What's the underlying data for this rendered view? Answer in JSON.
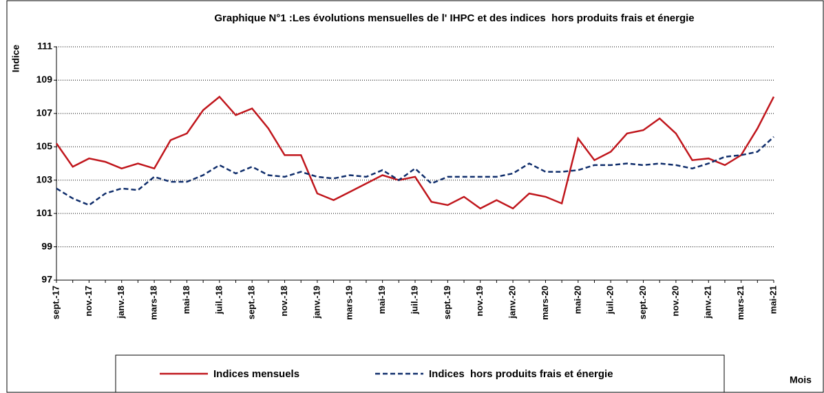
{
  "chart_data": {
    "type": "line",
    "title": "Graphique N°1 :Les évolutions mensuelles de l' IHPC et des indices  hors produits frais et énergie",
    "y_label": "Indice",
    "x_label": "Mois",
    "categories": [
      "sept.-17",
      null,
      "nov.-17",
      null,
      "janv.-18",
      null,
      "mars-18",
      null,
      "mai-18",
      null,
      "juil.-18",
      null,
      "sept.-18",
      null,
      "nov.-18",
      null,
      "janv.-19",
      null,
      "mars-19",
      null,
      "mai-19",
      null,
      "juil.-19",
      null,
      "sept.-19",
      null,
      "nov.-19",
      null,
      "janv.-20",
      null,
      "mars-20",
      null,
      "mai-20",
      null,
      "juil.-20",
      null,
      "sept.-20",
      null,
      "nov.-20",
      null,
      "janv.-21",
      null,
      "mars-21",
      null,
      "mai-21"
    ],
    "series": [
      {
        "name": "Indices mensuels",
        "color": "#c0161c",
        "dash": false,
        "values": [
          105.2,
          103.8,
          104.3,
          104.1,
          103.7,
          104.0,
          103.7,
          105.4,
          105.8,
          107.2,
          108.0,
          106.9,
          107.3,
          106.1,
          104.5,
          104.5,
          102.2,
          101.8,
          102.3,
          102.8,
          103.3,
          103.0,
          103.2,
          101.7,
          101.5,
          102.0,
          101.3,
          101.8,
          101.3,
          102.2,
          102.0,
          101.6,
          105.5,
          104.2,
          104.7,
          105.8,
          106.0,
          106.7,
          105.8,
          104.2,
          104.3,
          103.9,
          104.5,
          106.1,
          108.0
        ]
      },
      {
        "name": "Indices  hors produits frais et énergie",
        "color": "#0f2d6b",
        "dash": true,
        "values": [
          102.5,
          101.9,
          101.5,
          102.2,
          102.5,
          102.4,
          103.2,
          102.9,
          102.9,
          103.3,
          103.9,
          103.4,
          103.8,
          103.3,
          103.2,
          103.5,
          103.2,
          103.1,
          103.3,
          103.2,
          103.6,
          103.0,
          103.7,
          102.8,
          103.2,
          103.2,
          103.2,
          103.2,
          103.4,
          104.0,
          103.5,
          103.5,
          103.6,
          103.9,
          103.9,
          104.0,
          103.9,
          104.0,
          103.9,
          103.7,
          104.0,
          104.4,
          104.5,
          104.7,
          105.6
        ]
      }
    ],
    "ylim": [
      97,
      111
    ],
    "yticks": [
      97,
      99,
      101,
      103,
      105,
      107,
      109,
      111
    ],
    "grid": true
  }
}
